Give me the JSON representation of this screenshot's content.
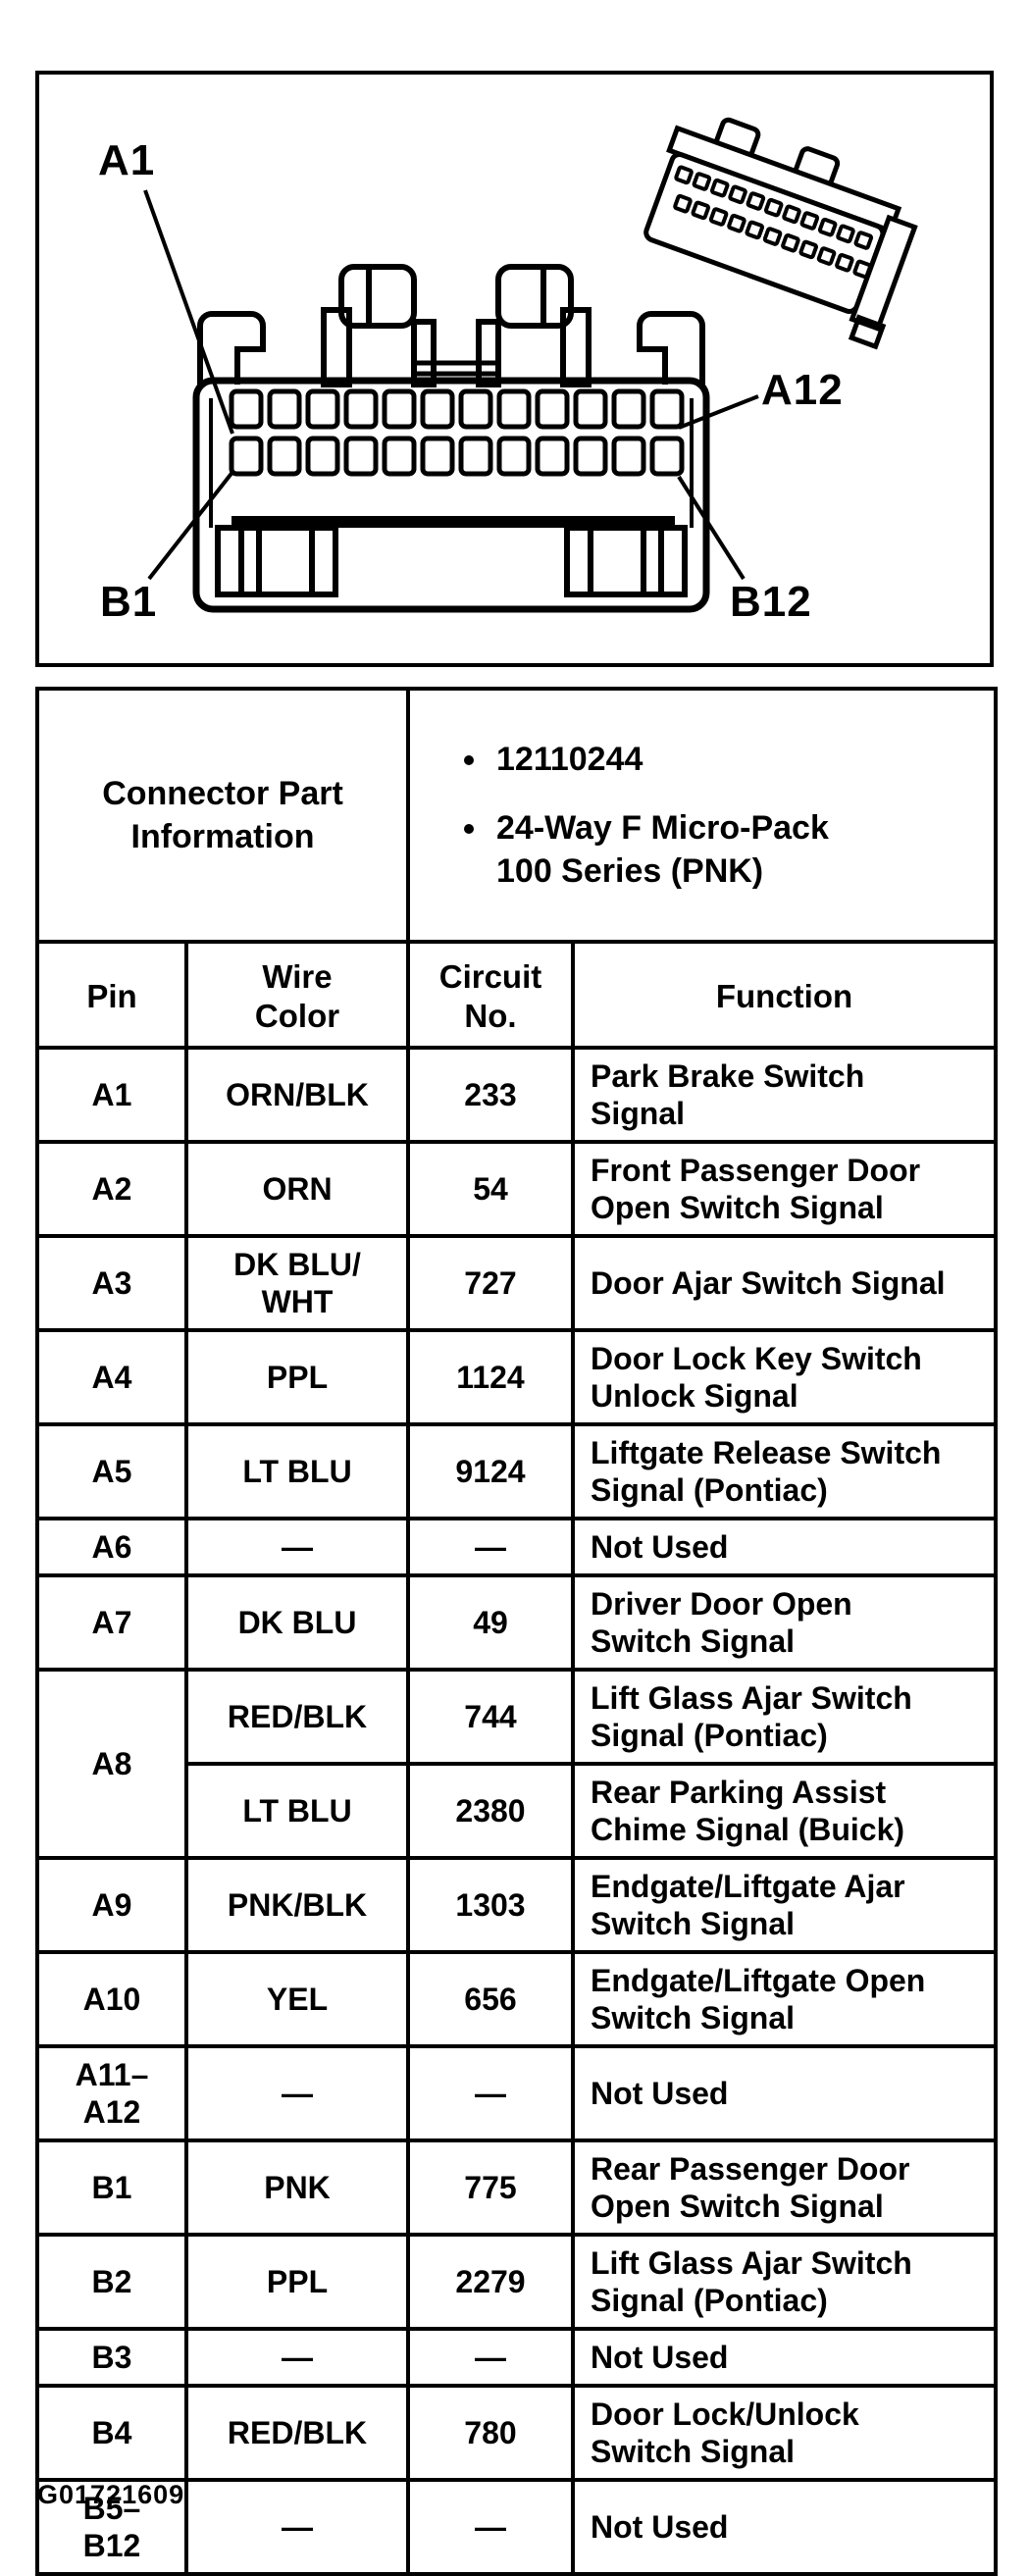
{
  "diagram": {
    "labels": {
      "a1": "A1",
      "a12": "A12",
      "b1": "B1",
      "b12": "B12"
    }
  },
  "part_info": {
    "title": "Connector Part\nInformation",
    "items": [
      "12110244",
      "24-Way F Micro-Pack\n100 Series (PNK)"
    ]
  },
  "table": {
    "headers": {
      "pin": "Pin",
      "wire": "Wire\nColor",
      "circuit": "Circuit\nNo.",
      "function": "Function"
    },
    "rows": [
      {
        "pin": "A1",
        "wire": "ORN/BLK",
        "circuit": "233",
        "function": "Park Brake Switch\nSignal"
      },
      {
        "pin": "A2",
        "wire": "ORN",
        "circuit": "54",
        "function": "Front Passenger Door\nOpen Switch Signal"
      },
      {
        "pin": "A3",
        "wire": "DK BLU/\nWHT",
        "circuit": "727",
        "function": "Door Ajar Switch Signal"
      },
      {
        "pin": "A4",
        "wire": "PPL",
        "circuit": "1124",
        "function": "Door Lock Key Switch\nUnlock Signal"
      },
      {
        "pin": "A5",
        "wire": "LT BLU",
        "circuit": "9124",
        "function": "Liftgate Release Switch\nSignal (Pontiac)"
      },
      {
        "pin": "A6",
        "wire": "—",
        "circuit": "—",
        "function": "Not Used"
      },
      {
        "pin": "A7",
        "wire": "DK BLU",
        "circuit": "49",
        "function": "Driver Door Open\nSwitch Signal"
      },
      {
        "pin": "A8",
        "pin_rowspan": 2,
        "wire": "RED/BLK",
        "circuit": "744",
        "function": "Lift Glass Ajar Switch\nSignal (Pontiac)"
      },
      {
        "pin": null,
        "wire": "LT BLU",
        "circuit": "2380",
        "function": "Rear Parking Assist\nChime Signal (Buick)"
      },
      {
        "pin": "A9",
        "wire": "PNK/BLK",
        "circuit": "1303",
        "function": "Endgate/Liftgate Ajar\nSwitch Signal"
      },
      {
        "pin": "A10",
        "wire": "YEL",
        "circuit": "656",
        "function": "Endgate/Liftgate Open\nSwitch Signal"
      },
      {
        "pin": "A11–\nA12",
        "wire": "—",
        "circuit": "—",
        "function": "Not Used"
      },
      {
        "pin": "B1",
        "wire": "PNK",
        "circuit": "775",
        "function": "Rear Passenger Door\nOpen Switch Signal"
      },
      {
        "pin": "B2",
        "wire": "PPL",
        "circuit": "2279",
        "function": "Lift Glass Ajar Switch\nSignal (Pontiac)"
      },
      {
        "pin": "B3",
        "wire": "—",
        "circuit": "—",
        "function": "Not Used"
      },
      {
        "pin": "B4",
        "wire": "RED/BLK",
        "circuit": "780",
        "function": "Door Lock/Unlock\nSwitch Signal"
      },
      {
        "pin": "B5–\nB12",
        "wire": "—",
        "circuit": "—",
        "function": "Not Used"
      }
    ]
  },
  "footer": {
    "figure_id": "G01721609"
  }
}
